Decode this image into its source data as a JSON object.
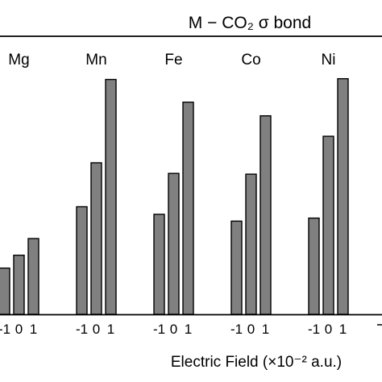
{
  "chart_data": {
    "type": "bar",
    "title": "M − CO₂ σ bond",
    "xlabel": "Electric Field (×10⁻² a.u.)",
    "ylabel": "",
    "bar_color": "#808080",
    "groups": [
      {
        "name": "Mg",
        "categories": [
          "-1",
          "0",
          "1"
        ],
        "values": [
          0.61,
          0.78,
          1.0
        ]
      },
      {
        "name": "Mn",
        "categories": [
          "-1",
          "0",
          "1"
        ],
        "values": [
          1.42,
          2.0,
          3.1
        ]
      },
      {
        "name": "Fe",
        "categories": [
          "-1",
          "0",
          "1"
        ],
        "values": [
          1.32,
          1.86,
          2.8
        ]
      },
      {
        "name": "Co",
        "categories": [
          "-1",
          "0",
          "1"
        ],
        "values": [
          1.23,
          1.85,
          2.62
        ]
      },
      {
        "name": "Ni",
        "categories": [
          "-1",
          "0",
          "1"
        ],
        "values": [
          1.27,
          2.35,
          3.11
        ]
      }
    ]
  }
}
